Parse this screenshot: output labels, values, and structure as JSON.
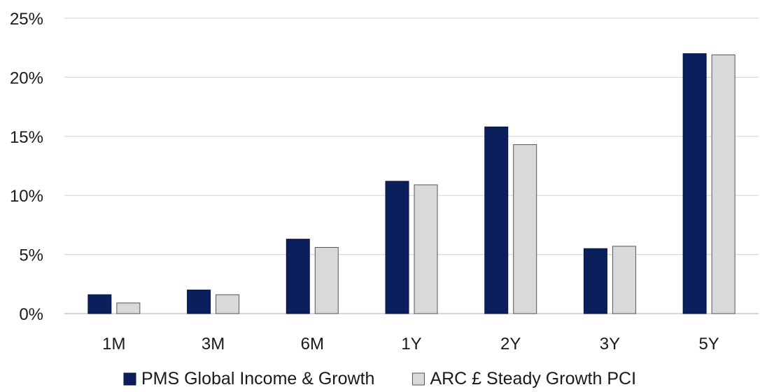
{
  "chart_data": {
    "type": "bar",
    "title": "",
    "xlabel": "",
    "ylabel": "",
    "categories": [
      "1M",
      "3M",
      "6M",
      "1Y",
      "2Y",
      "3Y",
      "5Y"
    ],
    "series": [
      {
        "name": "PMS Global Income & Growth",
        "color": "#0b1f5c",
        "values": [
          1.6,
          2.0,
          6.3,
          11.2,
          15.8,
          5.5,
          22.0
        ]
      },
      {
        "name": "ARC £ Steady Growth PCI",
        "color": "#d9d9d9",
        "values": [
          0.9,
          1.6,
          5.6,
          10.9,
          14.3,
          5.7,
          21.9
        ]
      }
    ],
    "ylim": [
      0,
      25
    ],
    "yticks": [
      0,
      5,
      10,
      15,
      20,
      25
    ],
    "ytick_format": "percent",
    "grid": true,
    "legend_position": "bottom"
  }
}
